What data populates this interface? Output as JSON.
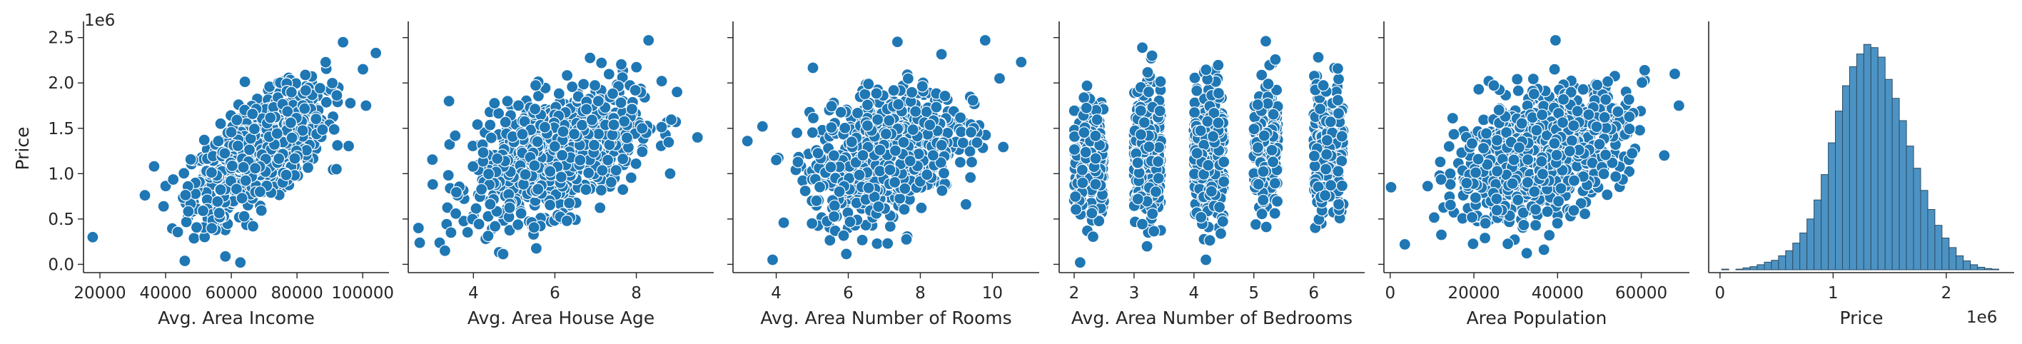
{
  "chart_data": [
    {
      "type": "scatter",
      "xlabel": "Avg. Area Income",
      "ylabel": "Price",
      "y_offset_label": "1e6",
      "xlim": [
        15000,
        108000
      ],
      "xticks": [
        20000,
        40000,
        60000,
        80000,
        100000
      ],
      "xtick_labels": [
        "20000",
        "40000",
        "60000",
        "80000",
        "100000"
      ],
      "ylim": [
        -0.06,
        2.6
      ],
      "yticks": [
        0.0,
        0.5,
        1.0,
        1.5,
        2.0,
        2.5
      ],
      "ytick_labels": [
        "0.0",
        "0.5",
        "1.0",
        "1.5",
        "2.0",
        "2.5"
      ],
      "color": "#1f77b4",
      "trend": {
        "x_mean": 68500,
        "x_sd": 10000,
        "y_mean": 1.23,
        "y_sd": 0.35,
        "corr": 0.64
      },
      "outliers": [
        [
          17800,
          0.3
        ],
        [
          104000,
          2.33
        ],
        [
          94000,
          2.45
        ],
        [
          36500,
          1.08
        ],
        [
          101000,
          1.75
        ],
        [
          92000,
          1.05
        ]
      ]
    },
    {
      "type": "scatter",
      "xlabel": "Avg. Area House Age",
      "ylim": [
        -0.06,
        2.6
      ],
      "xlim": [
        2.4,
        9.9
      ],
      "xticks": [
        4,
        6,
        8
      ],
      "xtick_labels": [
        "4",
        "6",
        "8"
      ],
      "color": "#1f77b4",
      "trend": {
        "x_mean": 6.0,
        "x_sd": 1.0,
        "y_mean": 1.23,
        "y_sd": 0.35,
        "corr": 0.45
      },
      "outliers": [
        [
          2.65,
          0.4
        ],
        [
          9.5,
          1.4
        ],
        [
          3.4,
          1.8
        ],
        [
          3.3,
          0.15
        ],
        [
          8.3,
          2.47
        ],
        [
          9.0,
          1.9
        ]
      ]
    },
    {
      "type": "scatter",
      "xlabel": "Avg. Area Number of Rooms",
      "ylim": [
        -0.06,
        2.6
      ],
      "xlim": [
        2.8,
        11.3
      ],
      "xticks": [
        4,
        6,
        8,
        10
      ],
      "xtick_labels": [
        "4",
        "6",
        "8",
        "10"
      ],
      "color": "#1f77b4",
      "trend": {
        "x_mean": 7.0,
        "x_sd": 1.0,
        "y_mean": 1.23,
        "y_sd": 0.35,
        "corr": 0.34
      },
      "outliers": [
        [
          3.2,
          1.36
        ],
        [
          10.8,
          2.23
        ],
        [
          10.2,
          2.05
        ],
        [
          3.9,
          0.05
        ],
        [
          9.8,
          2.47
        ],
        [
          4.0,
          1.15
        ]
      ]
    },
    {
      "type": "scatter",
      "xlabel": "Avg. Area Number of Bedrooms",
      "ylim": [
        -0.06,
        2.6
      ],
      "xlim": [
        1.75,
        6.85
      ],
      "xticks": [
        2,
        3,
        4,
        5,
        6
      ],
      "xtick_labels": [
        "2",
        "3",
        "4",
        "5",
        "6"
      ],
      "color": "#1f77b4",
      "columns": [
        {
          "x_min": 2.0,
          "x_max": 2.5,
          "y_mean": 1.15,
          "y_sd": 0.33,
          "count": 200
        },
        {
          "x_min": 3.0,
          "x_max": 3.45,
          "y_mean": 1.2,
          "y_sd": 0.36,
          "count": 380
        },
        {
          "x_min": 4.0,
          "x_max": 4.5,
          "y_mean": 1.23,
          "y_sd": 0.35,
          "count": 330
        },
        {
          "x_min": 5.0,
          "x_max": 5.4,
          "y_mean": 1.3,
          "y_sd": 0.35,
          "count": 180
        },
        {
          "x_min": 6.0,
          "x_max": 6.5,
          "y_mean": 1.3,
          "y_sd": 0.35,
          "count": 230
        }
      ],
      "outliers": [
        [
          2.1,
          0.02
        ],
        [
          5.2,
          2.46
        ],
        [
          3.3,
          2.3
        ],
        [
          4.2,
          0.05
        ]
      ]
    },
    {
      "type": "scatter",
      "xlabel": "Area Population",
      "ylim": [
        -0.06,
        2.6
      ],
      "xlim": [
        -1500,
        71500
      ],
      "xticks": [
        0,
        20000,
        40000,
        60000
      ],
      "xtick_labels": [
        "0",
        "20000",
        "40000",
        "60000"
      ],
      "color": "#1f77b4",
      "trend": {
        "x_mean": 36000,
        "x_sd": 10000,
        "y_mean": 1.23,
        "y_sd": 0.35,
        "corr": 0.41
      },
      "outliers": [
        [
          200,
          0.85
        ],
        [
          3500,
          0.22
        ],
        [
          69000,
          1.75
        ],
        [
          68000,
          2.1
        ],
        [
          39500,
          2.47
        ],
        [
          65500,
          1.2
        ]
      ]
    },
    {
      "type": "histogram",
      "xlabel": "Price",
      "x_offset_label": "1e6",
      "xlim": [
        -0.1,
        2.6
      ],
      "xticks": [
        0,
        1,
        2
      ],
      "xtick_labels": [
        "0",
        "1",
        "2"
      ],
      "bin_start": 0.015,
      "bin_width": 0.0628,
      "counts": [
        1,
        0,
        1,
        3,
        5,
        8,
        12,
        15,
        22,
        30,
        42,
        58,
        80,
        110,
        150,
        200,
        250,
        290,
        320,
        340,
        355,
        350,
        335,
        300,
        270,
        235,
        195,
        160,
        125,
        95,
        70,
        50,
        35,
        22,
        14,
        8,
        4,
        2,
        1
      ],
      "ymax": 380,
      "bar_color": "#4c93c4",
      "edge_color": "#2c4c64"
    }
  ]
}
